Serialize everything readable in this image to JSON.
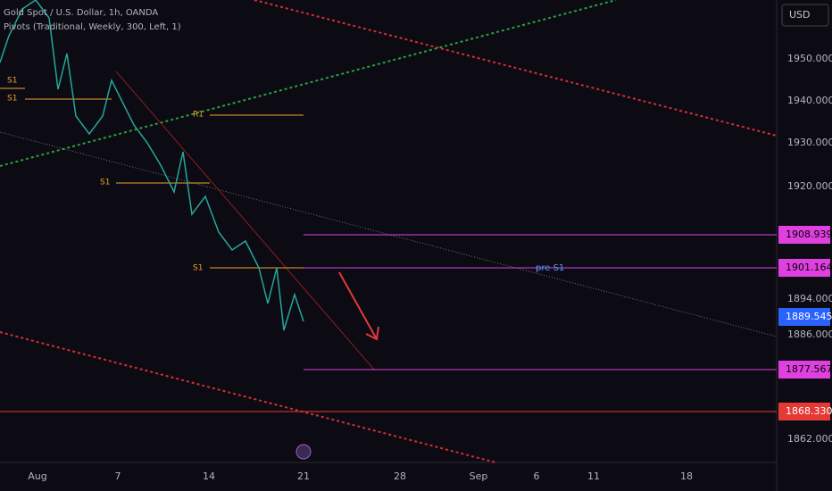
{
  "header": {
    "symbol": "Gold Spot / U.S. Dollar, 1h, OANDA",
    "indicator": "Pivots (Traditional, Weekly, 300, Left, 1)"
  },
  "currency": "USD",
  "price_axis": [
    "1950.000",
    "1940.000",
    "1930.000",
    "1920.000",
    "1894.000",
    "1886.000",
    "1862.000"
  ],
  "price_tags": [
    "1908.939",
    "1901.164",
    "1889.545",
    "1877.567",
    "1868.330"
  ],
  "time_axis": [
    "Aug",
    "7",
    "14",
    "21",
    "28",
    "Sep",
    "6",
    "11",
    "18"
  ],
  "pivot_labels": [
    "S1",
    "S1",
    "R1",
    "S1",
    "S1"
  ],
  "annotation": "pre S1"
}
